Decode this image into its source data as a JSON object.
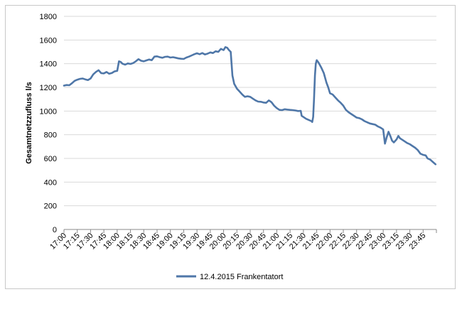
{
  "chart_data": {
    "type": "line",
    "title": "",
    "xlabel": "",
    "ylabel": "Gesamtnetzzufluss  l/s",
    "ylim": [
      0,
      1800
    ],
    "yticks": [
      0,
      200,
      400,
      600,
      800,
      1000,
      1200,
      1400,
      1600,
      1800
    ],
    "xticks": [
      "17:00",
      "17:15",
      "17:30",
      "17:45",
      "18:00",
      "18:15",
      "18:30",
      "18:45",
      "19:00",
      "19:15",
      "19:30",
      "19:45",
      "20:00",
      "20:15",
      "20:30",
      "20:45",
      "21:00",
      "21:15",
      "21:30",
      "21:45",
      "22:00",
      "22:15",
      "22:30",
      "22:45",
      "23:00",
      "23:15",
      "23:30",
      "23:45"
    ],
    "grid": "horizontal",
    "legend_position": "bottom",
    "line_color": "#4f77a8",
    "series": [
      {
        "name": "12.4.2015 Frankentatort",
        "points": [
          [
            "17:00",
            1215
          ],
          [
            "17:03",
            1220
          ],
          [
            "17:06",
            1218
          ],
          [
            "17:09",
            1235
          ],
          [
            "17:12",
            1255
          ],
          [
            "17:15",
            1265
          ],
          [
            "17:18",
            1272
          ],
          [
            "17:21",
            1275
          ],
          [
            "17:24",
            1268
          ],
          [
            "17:27",
            1262
          ],
          [
            "17:30",
            1275
          ],
          [
            "17:33",
            1310
          ],
          [
            "17:36",
            1330
          ],
          [
            "17:39",
            1345
          ],
          [
            "17:42",
            1320
          ],
          [
            "17:45",
            1318
          ],
          [
            "17:48",
            1330
          ],
          [
            "17:51",
            1315
          ],
          [
            "17:54",
            1322
          ],
          [
            "17:57",
            1335
          ],
          [
            "18:00",
            1340
          ],
          [
            "18:02",
            1420
          ],
          [
            "18:04",
            1415
          ],
          [
            "18:06",
            1400
          ],
          [
            "18:09",
            1392
          ],
          [
            "18:12",
            1402
          ],
          [
            "18:15",
            1398
          ],
          [
            "18:18",
            1405
          ],
          [
            "18:21",
            1420
          ],
          [
            "18:24",
            1438
          ],
          [
            "18:27",
            1425
          ],
          [
            "18:30",
            1420
          ],
          [
            "18:33",
            1428
          ],
          [
            "18:36",
            1435
          ],
          [
            "18:39",
            1430
          ],
          [
            "18:42",
            1460
          ],
          [
            "18:45",
            1462
          ],
          [
            "18:48",
            1455
          ],
          [
            "18:51",
            1450
          ],
          [
            "18:54",
            1458
          ],
          [
            "18:57",
            1460
          ],
          [
            "19:00",
            1452
          ],
          [
            "19:03",
            1455
          ],
          [
            "19:06",
            1450
          ],
          [
            "19:09",
            1445
          ],
          [
            "19:12",
            1442
          ],
          [
            "19:15",
            1440
          ],
          [
            "19:18",
            1452
          ],
          [
            "19:21",
            1460
          ],
          [
            "19:24",
            1470
          ],
          [
            "19:27",
            1480
          ],
          [
            "19:30",
            1488
          ],
          [
            "19:33",
            1480
          ],
          [
            "19:36",
            1490
          ],
          [
            "19:39",
            1478
          ],
          [
            "19:42",
            1485
          ],
          [
            "19:45",
            1495
          ],
          [
            "19:48",
            1490
          ],
          [
            "19:51",
            1505
          ],
          [
            "19:54",
            1500
          ],
          [
            "19:57",
            1525
          ],
          [
            "20:00",
            1515
          ],
          [
            "20:02",
            1540
          ],
          [
            "20:04",
            1535
          ],
          [
            "20:06",
            1515
          ],
          [
            "20:08",
            1500
          ],
          [
            "20:09",
            1400
          ],
          [
            "20:10",
            1300
          ],
          [
            "20:12",
            1230
          ],
          [
            "20:15",
            1190
          ],
          [
            "20:18",
            1165
          ],
          [
            "20:21",
            1140
          ],
          [
            "20:24",
            1120
          ],
          [
            "20:27",
            1125
          ],
          [
            "20:30",
            1120
          ],
          [
            "20:33",
            1105
          ],
          [
            "20:36",
            1090
          ],
          [
            "20:39",
            1080
          ],
          [
            "20:42",
            1078
          ],
          [
            "20:45",
            1072
          ],
          [
            "20:48",
            1070
          ],
          [
            "20:51",
            1090
          ],
          [
            "20:54",
            1075
          ],
          [
            "20:57",
            1045
          ],
          [
            "21:00",
            1025
          ],
          [
            "21:03",
            1010
          ],
          [
            "21:06",
            1008
          ],
          [
            "21:09",
            1015
          ],
          [
            "21:12",
            1012
          ],
          [
            "21:15",
            1010
          ],
          [
            "21:18",
            1008
          ],
          [
            "21:21",
            1005
          ],
          [
            "21:24",
            1000
          ],
          [
            "21:27",
            1002
          ],
          [
            "21:28",
            960
          ],
          [
            "21:30",
            950
          ],
          [
            "21:33",
            935
          ],
          [
            "21:36",
            925
          ],
          [
            "21:39",
            915
          ],
          [
            "21:40",
            908
          ],
          [
            "21:41",
            950
          ],
          [
            "21:42",
            1100
          ],
          [
            "21:43",
            1300
          ],
          [
            "21:44",
            1400
          ],
          [
            "21:45",
            1430
          ],
          [
            "21:47",
            1410
          ],
          [
            "21:50",
            1370
          ],
          [
            "21:53",
            1320
          ],
          [
            "21:56",
            1240
          ],
          [
            "21:58",
            1200
          ],
          [
            "22:00",
            1150
          ],
          [
            "22:03",
            1140
          ],
          [
            "22:06",
            1115
          ],
          [
            "22:09",
            1090
          ],
          [
            "22:12",
            1070
          ],
          [
            "22:15",
            1045
          ],
          [
            "22:18",
            1010
          ],
          [
            "22:21",
            990
          ],
          [
            "22:24",
            975
          ],
          [
            "22:27",
            960
          ],
          [
            "22:30",
            945
          ],
          [
            "22:33",
            940
          ],
          [
            "22:36",
            930
          ],
          [
            "22:39",
            915
          ],
          [
            "22:42",
            905
          ],
          [
            "22:45",
            895
          ],
          [
            "22:48",
            890
          ],
          [
            "22:51",
            885
          ],
          [
            "22:54",
            870
          ],
          [
            "22:57",
            860
          ],
          [
            "23:00",
            845
          ],
          [
            "23:02",
            725
          ],
          [
            "23:04",
            780
          ],
          [
            "23:06",
            825
          ],
          [
            "23:08",
            790
          ],
          [
            "23:10",
            750
          ],
          [
            "23:12",
            735
          ],
          [
            "23:15",
            760
          ],
          [
            "23:17",
            790
          ],
          [
            "23:19",
            770
          ],
          [
            "23:21",
            760
          ],
          [
            "23:24",
            745
          ],
          [
            "23:27",
            730
          ],
          [
            "23:30",
            720
          ],
          [
            "23:33",
            705
          ],
          [
            "23:36",
            690
          ],
          [
            "23:39",
            670
          ],
          [
            "23:42",
            640
          ],
          [
            "23:45",
            630
          ],
          [
            "23:48",
            625
          ],
          [
            "23:50",
            600
          ],
          [
            "23:53",
            590
          ],
          [
            "23:56",
            570
          ],
          [
            "23:59",
            550
          ]
        ]
      }
    ]
  }
}
